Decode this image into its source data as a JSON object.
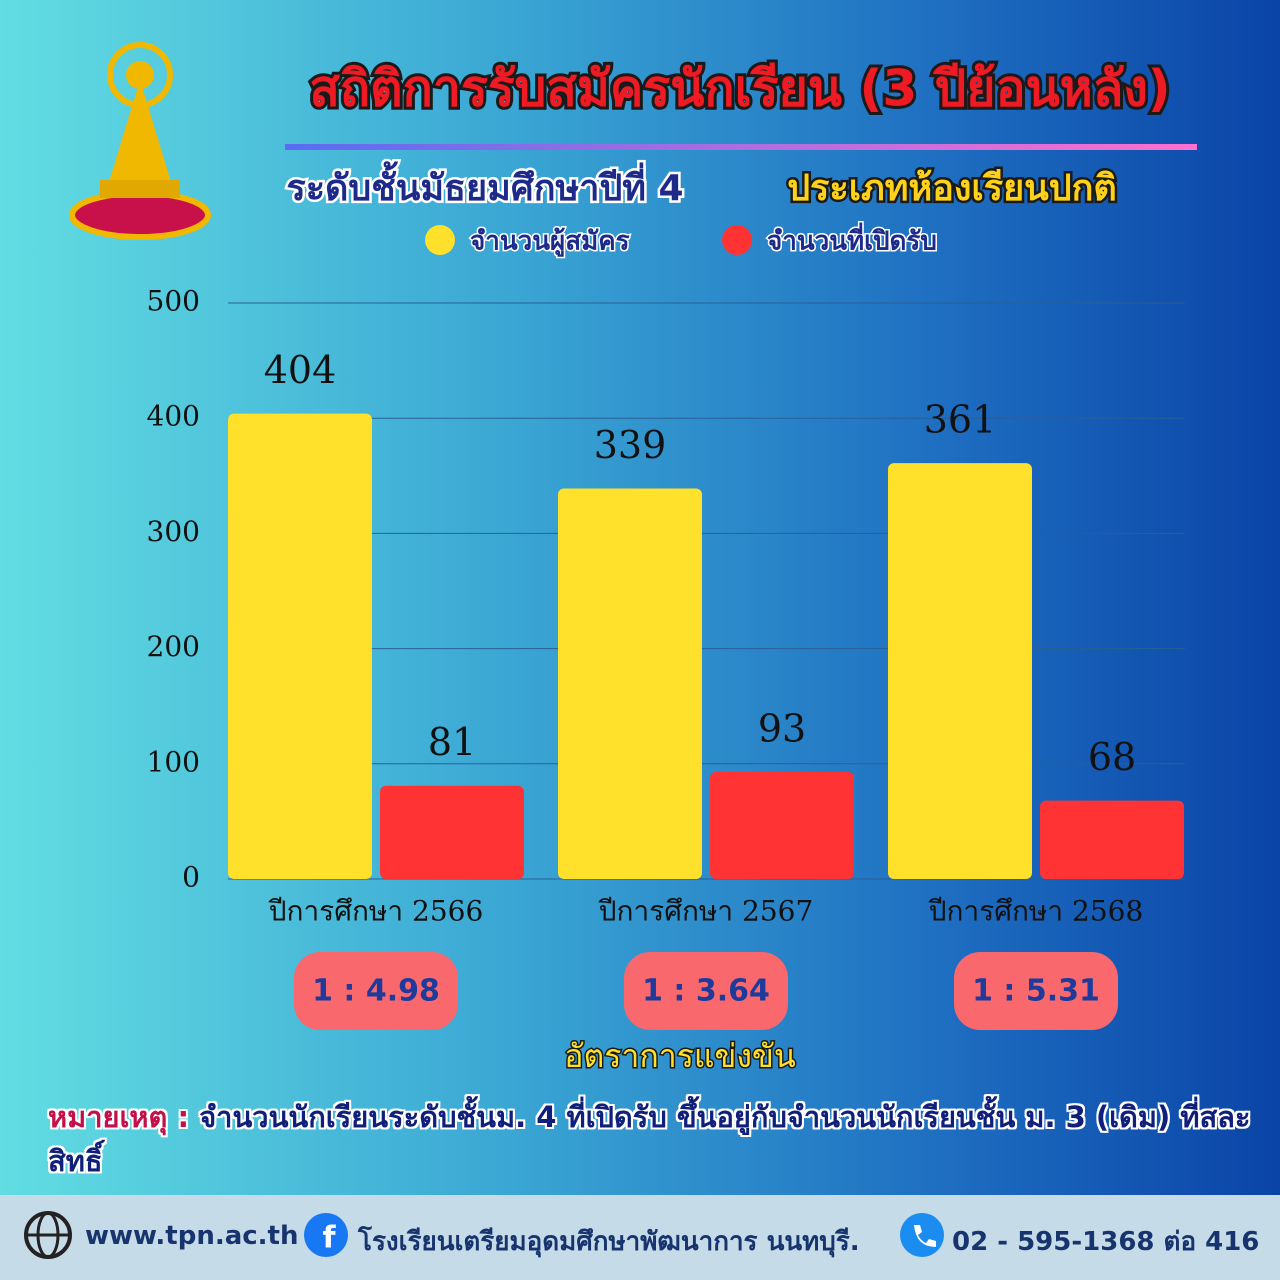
{
  "header": {
    "title": "สถิติการรับสมัครนักเรียน (3 ปีย้อนหลัง)",
    "subtitle": "ระดับชั้นมัธยมศึกษาปีที่ 4",
    "room_type": "ประเภทห้องเรียนปกติ"
  },
  "chart_data": {
    "type": "bar",
    "categories": [
      "ปีการศึกษา 2566",
      "ปีการศึกษา 2567",
      "ปีการศึกษา 2568"
    ],
    "series": [
      {
        "name": "จำนวนผู้สมัคร",
        "color": "#ffe02a",
        "values": [
          404,
          339,
          361
        ]
      },
      {
        "name": "จำนวนที่เปิดรับ",
        "color": "#ff3333",
        "values": [
          81,
          93,
          68
        ]
      }
    ],
    "ylim": [
      0,
      500
    ],
    "yticks": [
      0,
      100,
      200,
      300,
      400,
      500
    ],
    "grid": true,
    "ratios": [
      "1 : 4.98",
      "1 : 3.64",
      "1 : 5.31"
    ],
    "ratio_label": "อัตราการแข่งขัน"
  },
  "note": {
    "label": "หมายเหตุ :",
    "text": "จำนวนนักเรียนระดับชั้นม. 4 ที่เปิดรับ ขึ้นอยู่กับจำนวนนักเรียนชั้น ม. 3 (เดิม)  ที่สละสิทธิ์"
  },
  "footer": {
    "website": "www.tpn.ac.th",
    "facebook": "โรงเรียนเตรียมอุดมศึกษาพัฒนาการ นนทบุรี.",
    "phone": "02 - 595-1368 ต่อ 416"
  }
}
